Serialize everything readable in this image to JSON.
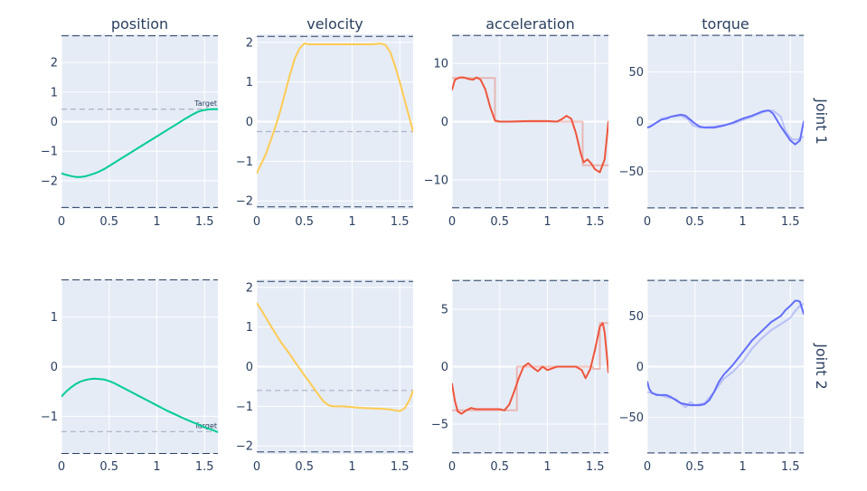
{
  "chart_data": {
    "type": "line",
    "columns": [
      "position",
      "velocity",
      "acceleration",
      "torque"
    ],
    "rows": [
      "Joint 1",
      "Joint 2"
    ],
    "target_label": "Target",
    "colors": {
      "position": "#00cc96",
      "velocity": "#fecb52",
      "acceleration": "#ef553b",
      "torque": "#636efa",
      "target": "#aab2c5",
      "limit": "#2a3f5f",
      "plot_bg": "#e5ecf6",
      "grid": "#ffffff"
    },
    "xlim": [
      0,
      1.64
    ],
    "xticks": [
      0,
      0.5,
      1,
      1.5
    ],
    "panels": [
      {
        "row": 0,
        "col": 0,
        "ylim": [
          -2.95,
          2.95
        ],
        "yticks": [
          -2,
          -1,
          0,
          1,
          2
        ],
        "limits": [
          -2.9,
          2.9
        ],
        "target": 0.42,
        "series": [
          {
            "role": "main",
            "x": [
              0,
              0.05,
              0.1,
              0.15,
              0.2,
              0.25,
              0.3,
              0.35,
              0.4,
              0.45,
              0.5,
              0.6,
              0.7,
              0.8,
              0.9,
              1.0,
              1.1,
              1.2,
              1.3,
              1.38,
              1.43,
              1.48,
              1.53,
              1.58,
              1.64
            ],
            "y": [
              -1.75,
              -1.8,
              -1.84,
              -1.87,
              -1.87,
              -1.85,
              -1.8,
              -1.75,
              -1.68,
              -1.6,
              -1.5,
              -1.3,
              -1.1,
              -0.9,
              -0.7,
              -0.5,
              -0.3,
              -0.1,
              0.1,
              0.25,
              0.33,
              0.38,
              0.41,
              0.42,
              0.42
            ]
          }
        ]
      },
      {
        "row": 0,
        "col": 1,
        "ylim": [
          -2.2,
          2.2
        ],
        "yticks": [
          -2,
          -1,
          0,
          1,
          2
        ],
        "limits": [
          -2.15,
          2.15
        ],
        "target": -0.25,
        "series": [
          {
            "role": "main",
            "x": [
              0,
              0.05,
              0.1,
              0.15,
              0.2,
              0.25,
              0.3,
              0.35,
              0.4,
              0.45,
              0.5,
              0.55,
              0.6,
              0.8,
              1.0,
              1.2,
              1.3,
              1.35,
              1.4,
              1.45,
              1.5,
              1.55,
              1.6,
              1.64
            ],
            "y": [
              -1.3,
              -1.05,
              -0.8,
              -0.45,
              -0.1,
              0.3,
              0.75,
              1.2,
              1.6,
              1.85,
              1.97,
              1.95,
              1.95,
              1.95,
              1.95,
              1.95,
              1.97,
              1.93,
              1.75,
              1.4,
              1.0,
              0.55,
              0.1,
              -0.25
            ]
          }
        ]
      },
      {
        "row": 0,
        "col": 2,
        "ylim": [
          -15,
          15
        ],
        "yticks": [
          -10,
          0,
          10
        ],
        "limits": [
          -14.8,
          14.8
        ],
        "target": null,
        "series": [
          {
            "role": "ref",
            "x": [
              0,
              0.45,
              0.45,
              1.37,
              1.37,
              1.64
            ],
            "y": [
              7.5,
              7.5,
              0,
              0,
              -7.5,
              -7.5
            ]
          },
          {
            "role": "main",
            "x": [
              0,
              0.03,
              0.08,
              0.12,
              0.18,
              0.22,
              0.26,
              0.3,
              0.35,
              0.4,
              0.45,
              0.5,
              0.55,
              0.6,
              0.8,
              1.0,
              1.1,
              1.15,
              1.2,
              1.25,
              1.3,
              1.35,
              1.38,
              1.42,
              1.46,
              1.5,
              1.55,
              1.6,
              1.64
            ],
            "y": [
              5.5,
              7.2,
              7.6,
              7.6,
              7.3,
              7.2,
              7.6,
              7.2,
              5.5,
              2.5,
              0.2,
              0,
              0,
              0,
              0.1,
              0.1,
              0,
              0.4,
              1.0,
              0.5,
              -2.0,
              -5.5,
              -7.0,
              -6.5,
              -7.2,
              -8.2,
              -8.7,
              -6.5,
              0
            ]
          }
        ]
      },
      {
        "row": 0,
        "col": 3,
        "ylim": [
          -88,
          88
        ],
        "yticks": [
          -50,
          0,
          50
        ],
        "limits": [
          -87,
          87
        ],
        "target": null,
        "series": [
          {
            "role": "ref",
            "x": [
              0,
              0.05,
              0.15,
              0.25,
              0.35,
              0.42,
              0.48,
              0.55,
              0.7,
              0.9,
              1.1,
              1.25,
              1.32,
              1.4,
              1.45,
              1.52,
              1.58,
              1.64
            ],
            "y": [
              -6,
              -4,
              3,
              5,
              6,
              3,
              -4,
              -6,
              -5,
              -2,
              5,
              11,
              11,
              5,
              -10,
              -18,
              -18,
              -15
            ]
          },
          {
            "role": "main",
            "x": [
              0,
              0.03,
              0.08,
              0.15,
              0.2,
              0.25,
              0.3,
              0.35,
              0.4,
              0.45,
              0.5,
              0.55,
              0.6,
              0.7,
              0.8,
              0.9,
              1.0,
              1.1,
              1.2,
              1.25,
              1.28,
              1.32,
              1.35,
              1.4,
              1.45,
              1.5,
              1.55,
              1.6,
              1.64
            ],
            "y": [
              -6,
              -5,
              -2,
              2,
              3,
              5,
              6,
              7,
              6,
              2,
              -2,
              -5,
              -6,
              -6,
              -4,
              -1,
              3,
              6,
              10,
              11,
              11,
              8,
              3,
              -5,
              -12,
              -19,
              -23,
              -19,
              0
            ]
          }
        ]
      },
      {
        "row": 1,
        "col": 0,
        "ylim": [
          -1.76,
          1.76
        ],
        "yticks": [
          -1,
          0,
          1
        ],
        "limits": [
          -1.75,
          1.75
        ],
        "target": -1.31,
        "series": [
          {
            "role": "main",
            "x": [
              0,
              0.05,
              0.1,
              0.15,
              0.2,
              0.25,
              0.3,
              0.35,
              0.4,
              0.45,
              0.5,
              0.55,
              0.6,
              0.7,
              0.8,
              0.9,
              1.0,
              1.1,
              1.2,
              1.3,
              1.4,
              1.5,
              1.6,
              1.64
            ],
            "y": [
              -0.6,
              -0.5,
              -0.42,
              -0.35,
              -0.3,
              -0.27,
              -0.25,
              -0.24,
              -0.25,
              -0.26,
              -0.29,
              -0.33,
              -0.38,
              -0.48,
              -0.58,
              -0.68,
              -0.78,
              -0.88,
              -0.97,
              -1.06,
              -1.14,
              -1.22,
              -1.29,
              -1.32
            ]
          }
        ]
      },
      {
        "row": 1,
        "col": 1,
        "ylim": [
          -2.2,
          2.2
        ],
        "yticks": [
          -2,
          -1,
          0,
          1,
          2
        ],
        "limits": [
          -2.15,
          2.15
        ],
        "target": -0.6,
        "series": [
          {
            "role": "main",
            "x": [
              0,
              0.05,
              0.1,
              0.15,
              0.2,
              0.25,
              0.3,
              0.35,
              0.4,
              0.45,
              0.5,
              0.55,
              0.6,
              0.65,
              0.7,
              0.75,
              0.8,
              0.9,
              1.0,
              1.1,
              1.2,
              1.3,
              1.4,
              1.45,
              1.5,
              1.55,
              1.6,
              1.64
            ],
            "y": [
              1.6,
              1.42,
              1.22,
              1.02,
              0.82,
              0.63,
              0.47,
              0.3,
              0.12,
              -0.05,
              -0.22,
              -0.38,
              -0.55,
              -0.72,
              -0.87,
              -0.97,
              -1.0,
              -1.0,
              -1.02,
              -1.04,
              -1.05,
              -1.06,
              -1.08,
              -1.1,
              -1.12,
              -1.05,
              -0.85,
              -0.6
            ]
          }
        ]
      },
      {
        "row": 1,
        "col": 2,
        "ylim": [
          -7.6,
          7.6
        ],
        "yticks": [
          -5,
          0,
          5
        ],
        "limits": [
          -7.5,
          7.5
        ],
        "target": null,
        "series": [
          {
            "role": "ref",
            "x": [
              0,
              0.68,
              0.68,
              1.48,
              1.48,
              1.55,
              1.55,
              1.64
            ],
            "y": [
              -3.8,
              -3.8,
              0,
              0,
              -0.2,
              -0.2,
              3.8,
              3.8
            ]
          },
          {
            "role": "main",
            "x": [
              0,
              0.03,
              0.06,
              0.1,
              0.15,
              0.2,
              0.25,
              0.3,
              0.35,
              0.4,
              0.45,
              0.5,
              0.55,
              0.6,
              0.65,
              0.7,
              0.75,
              0.8,
              0.85,
              0.9,
              0.95,
              1.0,
              1.1,
              1.2,
              1.3,
              1.36,
              1.4,
              1.45,
              1.5,
              1.55,
              1.58,
              1.6,
              1.64
            ],
            "y": [
              -1.5,
              -3.0,
              -3.9,
              -4.1,
              -3.8,
              -3.6,
              -3.7,
              -3.7,
              -3.7,
              -3.7,
              -3.7,
              -3.7,
              -3.8,
              -3.3,
              -2.2,
              -1.0,
              0,
              0.3,
              -0.1,
              -0.4,
              0,
              -0.3,
              0,
              0,
              0,
              -0.3,
              -1.0,
              -0.2,
              1.5,
              3.5,
              3.8,
              3.0,
              -0.5
            ]
          }
        ]
      },
      {
        "row": 1,
        "col": 3,
        "ylim": [
          -86,
          86
        ],
        "yticks": [
          -50,
          0,
          50
        ],
        "limits": [
          -85,
          85
        ],
        "target": null,
        "series": [
          {
            "role": "ref",
            "x": [
              0,
              0.1,
              0.2,
              0.3,
              0.4,
              0.45,
              0.5,
              0.6,
              0.7,
              0.8,
              0.9,
              1.0,
              1.1,
              1.2,
              1.3,
              1.4,
              1.45,
              1.5,
              1.55,
              1.6,
              1.64
            ],
            "y": [
              -25,
              -27,
              -30,
              -32,
              -40,
              -35,
              -38,
              -36,
              -25,
              -12,
              -5,
              5,
              18,
              28,
              36,
              42,
              45,
              48,
              55,
              60,
              62
            ]
          },
          {
            "role": "main",
            "x": [
              0,
              0.02,
              0.05,
              0.1,
              0.15,
              0.2,
              0.25,
              0.3,
              0.35,
              0.4,
              0.45,
              0.5,
              0.55,
              0.6,
              0.65,
              0.7,
              0.75,
              0.8,
              0.9,
              1.0,
              1.1,
              1.2,
              1.3,
              1.4,
              1.45,
              1.5,
              1.55,
              1.58,
              1.6,
              1.62,
              1.64
            ],
            "y": [
              -15,
              -22,
              -26,
              -28,
              -28,
              -28,
              -30,
              -33,
              -36,
              -37,
              -38,
              -38,
              -38,
              -37,
              -33,
              -25,
              -15,
              -8,
              2,
              14,
              26,
              35,
              44,
              50,
              56,
              60,
              65,
              65,
              64,
              58,
              52
            ]
          }
        ]
      }
    ]
  }
}
